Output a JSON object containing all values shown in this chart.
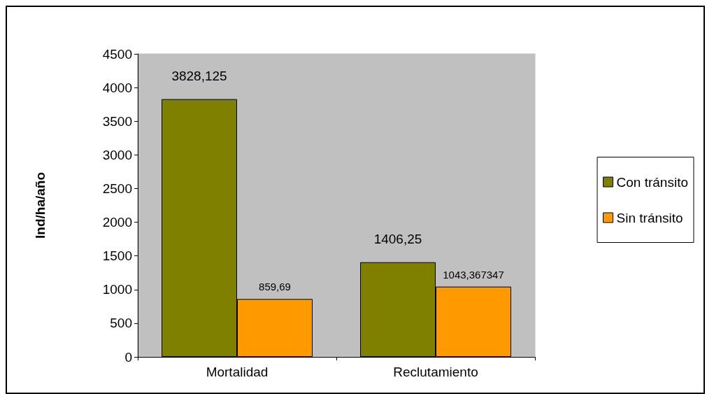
{
  "chart_data": {
    "type": "bar",
    "ylabel": "Ind/ha/año",
    "categories": [
      "Mortalidad",
      "Reclutamiento"
    ],
    "series": [
      {
        "name": "Con tránsito",
        "color": "#808000",
        "values": [
          3828.125,
          1406.25
        ],
        "value_labels": [
          "3828,125",
          "1406,25"
        ]
      },
      {
        "name": "Sin tránsito",
        "color": "#ff9900",
        "values": [
          859.69,
          1043.367347
        ],
        "value_labels": [
          "859,69",
          "1043,367347"
        ]
      }
    ],
    "ylim": [
      0,
      4500
    ],
    "yticks": [
      0,
      500,
      1000,
      1500,
      2000,
      2500,
      3000,
      3500,
      4000,
      4500
    ],
    "grid": false,
    "legend": "right"
  }
}
